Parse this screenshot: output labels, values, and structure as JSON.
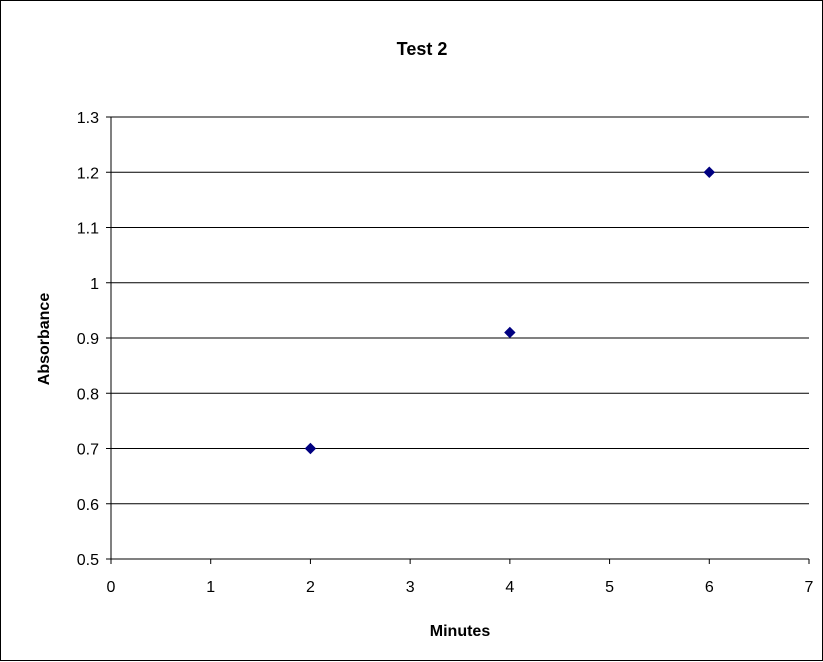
{
  "chart_data": {
    "type": "scatter",
    "title": "Test 2",
    "xlabel": "Minutes",
    "ylabel": "Absorbance",
    "xlim": [
      0,
      7
    ],
    "ylim": [
      0.5,
      1.3
    ],
    "x_ticks": [
      "0",
      "1",
      "2",
      "3",
      "4",
      "5",
      "6",
      "7"
    ],
    "y_ticks": [
      "0.5",
      "0.6",
      "0.7",
      "0.8",
      "0.9",
      "1",
      "1.1",
      "1.2",
      "1.3"
    ],
    "grid": "horizontal",
    "legend": "none",
    "marker": "diamond",
    "marker_color": "#000080",
    "series": [
      {
        "x": [
          2,
          4,
          6
        ],
        "y": [
          0.7,
          0.91,
          1.2
        ]
      }
    ]
  }
}
